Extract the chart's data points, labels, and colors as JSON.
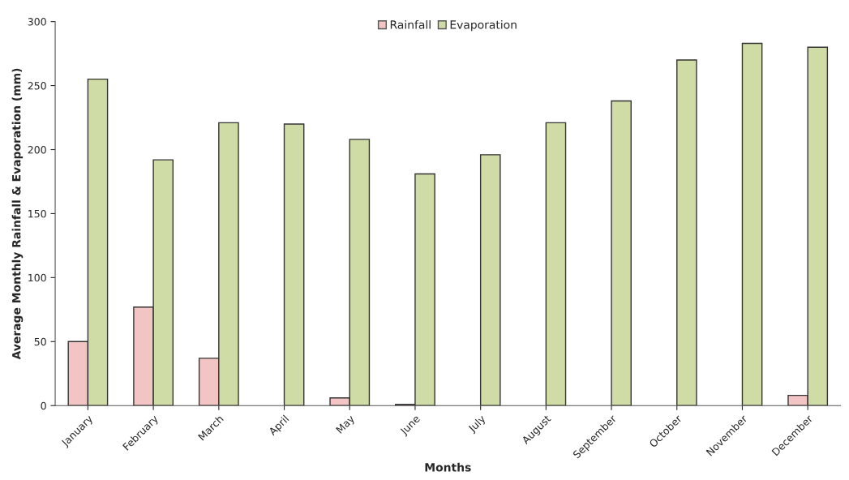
{
  "chart_data": {
    "type": "bar",
    "xlabel": "Months",
    "ylabel": "Average Monthly Rainfall & Evaporation (mm)",
    "categories": [
      "January",
      "February",
      "March",
      "April",
      "May",
      "June",
      "July",
      "August",
      "September",
      "October",
      "November",
      "December"
    ],
    "series": [
      {
        "name": "Rainfall",
        "color": "#f2c4c4",
        "values": [
          50,
          77,
          37,
          0,
          6,
          1,
          0,
          0,
          0,
          0,
          0,
          8
        ]
      },
      {
        "name": "Evaporation",
        "color": "#cfdca6",
        "values": [
          255,
          192,
          221,
          220,
          208,
          181,
          196,
          221,
          238,
          270,
          283,
          280
        ]
      }
    ],
    "ylim": [
      0,
      300
    ],
    "yticks": [
      0,
      50,
      100,
      150,
      200,
      250,
      300
    ],
    "grid": false,
    "legend": "top"
  }
}
